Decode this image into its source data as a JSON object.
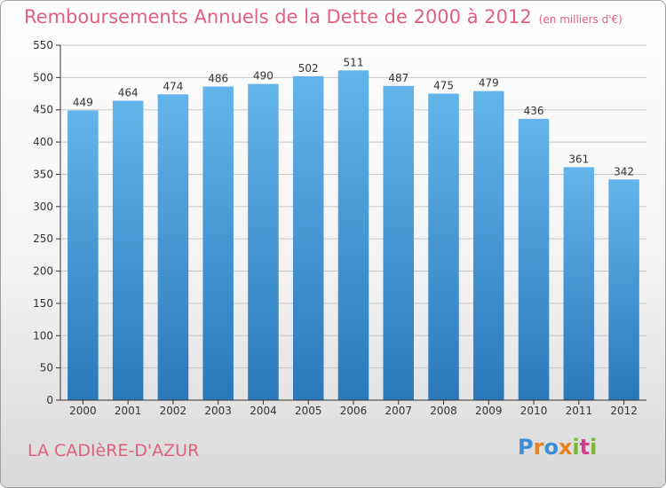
{
  "title": "Remboursements Annuels de la Dette de 2000 à 2012",
  "unit_note": "(en milliers d'€)",
  "city": "LA CADIèRE-D'AZUR",
  "brand": "Proxiti",
  "colors": {
    "title": "#e0607e",
    "bar_top": "#64b4ec",
    "bar_bottom": "#2a78ba",
    "grid": "#c8c8c8"
  },
  "chart_data": {
    "type": "bar",
    "categories": [
      "2000",
      "2001",
      "2002",
      "2003",
      "2004",
      "2005",
      "2006",
      "2007",
      "2008",
      "2009",
      "2010",
      "2011",
      "2012"
    ],
    "values": [
      449,
      464,
      474,
      486,
      490,
      502,
      511,
      487,
      475,
      479,
      436,
      361,
      342
    ],
    "ylim": [
      0,
      550
    ],
    "yticks": [
      0,
      50,
      100,
      150,
      200,
      250,
      300,
      350,
      400,
      450,
      500,
      550
    ],
    "grid": true
  }
}
